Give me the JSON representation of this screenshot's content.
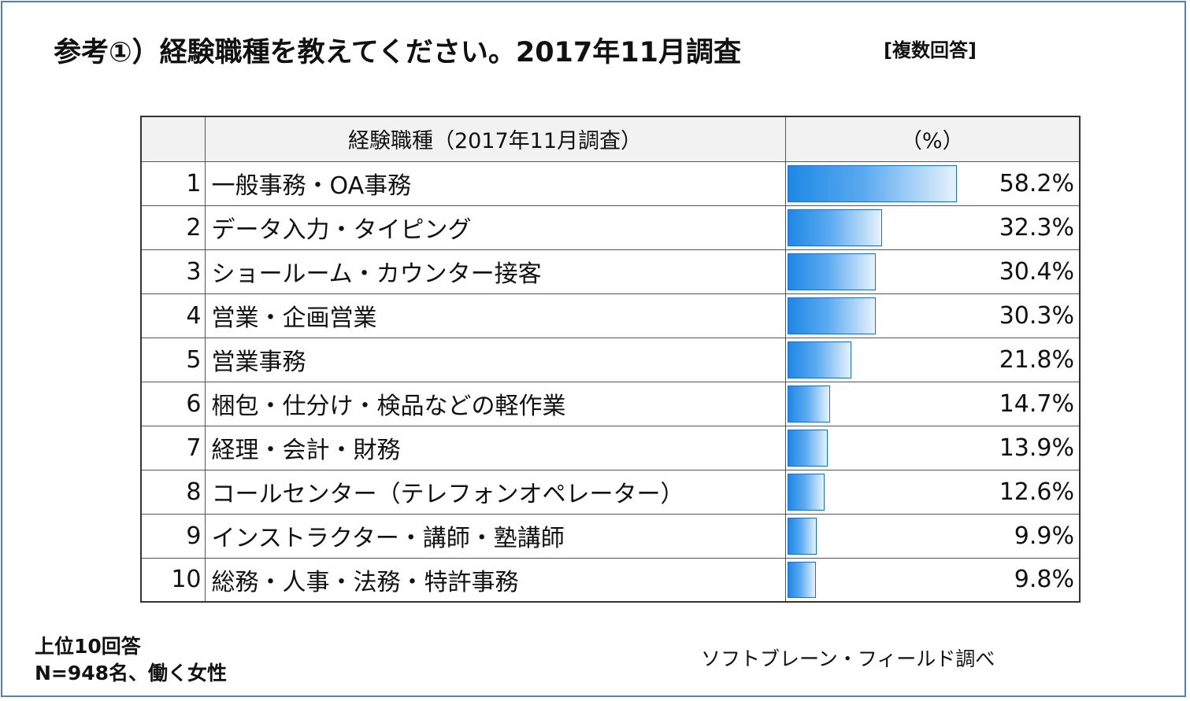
{
  "header": {
    "title": "参考①）経験職種を教えてください。2017年11月調査",
    "note": "[複数回答]"
  },
  "table": {
    "col_label_header": "経験職種（2017年11月調査）",
    "col_pct_header": "（%）"
  },
  "chart_data": {
    "type": "bar",
    "orientation": "horizontal",
    "title": "参考①）経験職種を教えてください。2017年11月調査",
    "xlim": [
      0,
      100
    ],
    "unit": "%",
    "categories": [
      "一般事務・OA事務",
      "データ入力・タイピング",
      "ショールーム・カウンター接客",
      "営業・企画営業",
      "営業事務",
      "梱包・仕分け・検品などの軽作業",
      "経理・会計・財務",
      "コールセンター（テレフォンオペレーター）",
      "インストラクター・講師・塾講師",
      "総務・人事・法務・特許事務"
    ],
    "ranks": [
      "1",
      "2",
      "3",
      "4",
      "5",
      "6",
      "7",
      "8",
      "9",
      "10"
    ],
    "values": [
      58.2,
      32.3,
      30.4,
      30.3,
      21.8,
      14.7,
      13.9,
      12.6,
      9.9,
      9.8
    ],
    "value_labels": [
      "58.2%",
      "32.3%",
      "30.4%",
      "30.3%",
      "21.8%",
      "14.7%",
      "13.9%",
      "12.6%",
      "9.9%",
      "9.8%"
    ],
    "bar_color": "#1e88e5"
  },
  "footer": {
    "line1": "上位10回答",
    "line2": "N=948名、働く女性",
    "source": "ソフトブレーン・フィールド調べ"
  }
}
